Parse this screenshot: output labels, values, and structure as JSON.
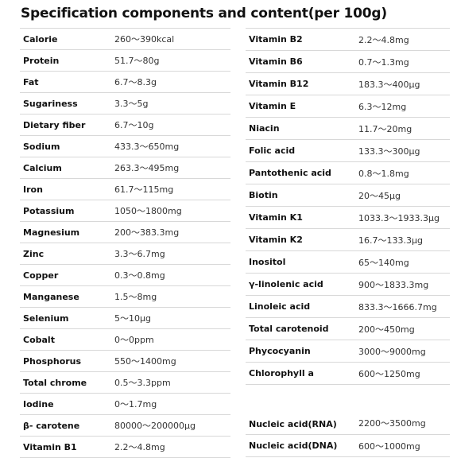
{
  "title": "Specification components and content(per 100g)",
  "left_rows": [
    {
      "name": "Calorie",
      "value": "260～390kcal"
    },
    {
      "name": "Protein",
      "value": "51.7～80g"
    },
    {
      "name": "Fat",
      "value": "6.7～8.3g"
    },
    {
      "name": "Sugariness",
      "value": "3.3～5g"
    },
    {
      "name": "Dietary fiber",
      "value": "6.7～10g"
    },
    {
      "name": "Sodium",
      "value": "433.3～650mg"
    },
    {
      "name": "Calcium",
      "value": "263.3～495mg"
    },
    {
      "name": "Iron",
      "value": "61.7～115mg"
    },
    {
      "name": "Potassium",
      "value": "1050～1800mg"
    },
    {
      "name": "Magnesium",
      "value": "200～383.3mg"
    },
    {
      "name": "Zinc",
      "value": "3.3～6.7mg"
    },
    {
      "name": "Copper",
      "value": "0.3～0.8mg"
    },
    {
      "name": "Manganese",
      "value": "1.5～8mg"
    },
    {
      "name": "Selenium",
      "value": "5～10μg"
    },
    {
      "name": "Cobalt",
      "value": "0～0ppm"
    },
    {
      "name": "Phosphorus",
      "value": "550～1400mg"
    },
    {
      "name": "Total chrome",
      "value": "0.5～3.3ppm"
    },
    {
      "name": "Iodine",
      "value": "0～1.7mg"
    },
    {
      "name": "β- carotene",
      "value": "80000～200000μg"
    },
    {
      "name": "Vitamin B1",
      "value": "2.2～4.8mg"
    }
  ],
  "right_rows": [
    {
      "name": "Vitamin B2",
      "value": "2.2～4.8mg"
    },
    {
      "name": "Vitamin B6",
      "value": "0.7～1.3mg"
    },
    {
      "name": "Vitamin B12",
      "value": "183.3～400μg"
    },
    {
      "name": "Vitamin E",
      "value": "6.3～12mg"
    },
    {
      "name": "Niacin",
      "value": "11.7～20mg"
    },
    {
      "name": "Folic acid",
      "value": "133.3～300μg"
    },
    {
      "name": "Pantothenic acid",
      "value": "0.8～1.8mg"
    },
    {
      "name": "Biotin",
      "value": "20～45μg"
    },
    {
      "name": "Vitamin K1",
      "value": "1033.3～1933.3μg"
    },
    {
      "name": "Vitamin K2",
      "value": "16.7～133.3μg"
    },
    {
      "name": "Inositol",
      "value": "65～140mg"
    },
    {
      "name": "γ-linolenic acid",
      "value": "900～1833.3mg"
    },
    {
      "name": "Linoleic acid",
      "value": "833.3～1666.7mg"
    },
    {
      "name": "Total carotenoid",
      "value": "200～450mg"
    },
    {
      "name": "Phycocyanin",
      "value": "3000～9000mg"
    },
    {
      "name": "Chlorophyll a",
      "value": "600～1250mg"
    },
    {
      "name": "Nucleic acid(RNA)",
      "value": "2200～3500mg"
    },
    {
      "name": "Nucleic acid(DNA)",
      "value": "600～1000mg"
    }
  ]
}
